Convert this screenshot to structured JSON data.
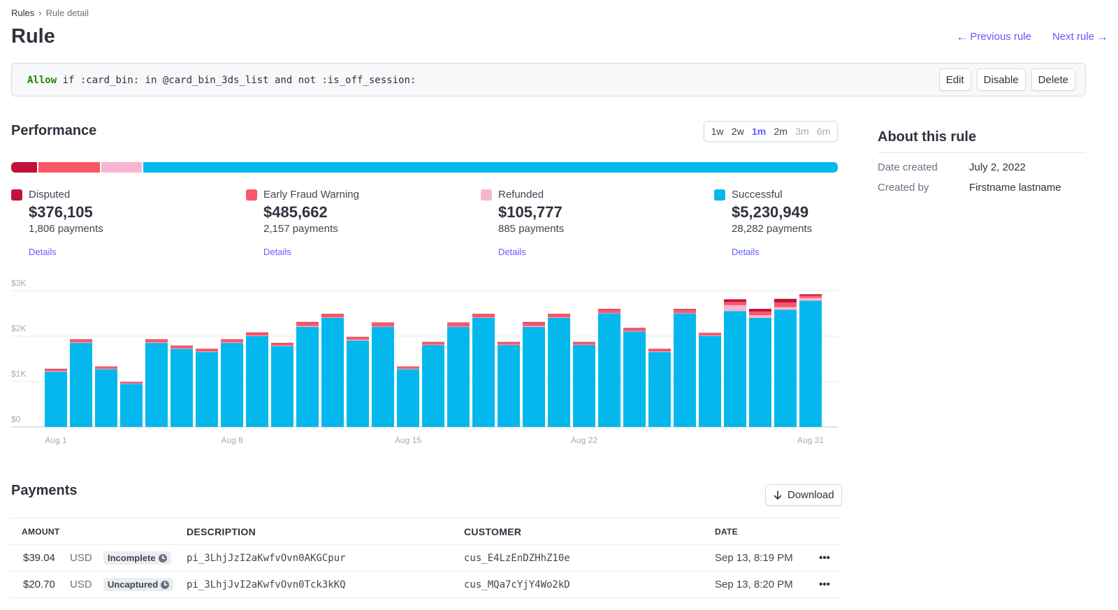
{
  "breadcrumb": {
    "root": "Rules",
    "separator": "›",
    "current": "Rule detail"
  },
  "page": {
    "title": "Rule"
  },
  "pager": {
    "previous": "Previous rule",
    "next": "Next rule",
    "previous_icon": "arrow-left-icon",
    "next_icon": "arrow-right-icon"
  },
  "rule": {
    "keyword": "Allow",
    "condition": " if :card_bin: in @card_bin_3ds_list and not :is_off_session:",
    "actions": {
      "edit": "Edit",
      "disable": "Disable",
      "delete": "Delete"
    }
  },
  "performance": {
    "title": "Performance",
    "ranges": [
      {
        "label": "1w",
        "state": "normal"
      },
      {
        "label": "2w",
        "state": "normal"
      },
      {
        "label": "1m",
        "state": "active"
      },
      {
        "label": "2m",
        "state": "normal"
      },
      {
        "label": "3m",
        "state": "disabled"
      },
      {
        "label": "6m",
        "state": "disabled"
      }
    ],
    "stats": [
      {
        "label": "Disputed",
        "value": "$376,105",
        "count": "1,806 payments",
        "details": "Details",
        "color": "#c0123c"
      },
      {
        "label": "Early Fraud Warning",
        "value": "$485,662",
        "count": "2,157 payments",
        "details": "Details",
        "color": "#fa5768"
      },
      {
        "label": "Refunded",
        "value": "$105,777",
        "count": "885 payments",
        "details": "Details",
        "color": "#f9b4d2"
      },
      {
        "label": "Successful",
        "value": "$5,230,949",
        "count": "28,282 payments",
        "details": "Details",
        "color": "#04b8ed"
      }
    ]
  },
  "chart_data": {
    "type": "bar",
    "stacked": true,
    "ylim": [
      0,
      3000
    ],
    "ytick_labels": [
      "$3K",
      "$2K",
      "$1K",
      "$0"
    ],
    "yticks": [
      3000,
      2000,
      1000,
      0
    ],
    "xtick_labels": [
      "Aug 1",
      "Aug 8",
      "Aug 15",
      "Aug 22",
      "Aug 31"
    ],
    "xtick_days": [
      1,
      8,
      15,
      22,
      31
    ],
    "categories": [
      "Aug 1",
      "Aug 2",
      "Aug 3",
      "Aug 4",
      "Aug 5",
      "Aug 6",
      "Aug 7",
      "Aug 8",
      "Aug 9",
      "Aug 10",
      "Aug 11",
      "Aug 12",
      "Aug 13",
      "Aug 14",
      "Aug 15",
      "Aug 16",
      "Aug 17",
      "Aug 18",
      "Aug 19",
      "Aug 20",
      "Aug 21",
      "Aug 22",
      "Aug 23",
      "Aug 24",
      "Aug 25",
      "Aug 26",
      "Aug 27",
      "Aug 28",
      "Aug 29",
      "Aug 30",
      "Aug 31"
    ],
    "series": [
      {
        "name": "Successful",
        "color": "#04b8ed",
        "values": [
          1220,
          1850,
          1270,
          950,
          1850,
          1720,
          1650,
          1850,
          2000,
          1780,
          2200,
          2400,
          1900,
          2200,
          1270,
          1800,
          2200,
          2400,
          1800,
          2200,
          2400,
          1800,
          2500,
          2100,
          1650,
          2500,
          2000,
          2550,
          2400,
          2580,
          2780
        ]
      },
      {
        "name": "Refunded",
        "color": "#f9b4d2",
        "values": [
          10,
          10,
          10,
          5,
          10,
          10,
          10,
          10,
          10,
          10,
          20,
          10,
          20,
          10,
          10,
          10,
          10,
          10,
          10,
          20,
          10,
          10,
          10,
          10,
          10,
          10,
          10,
          130,
          60,
          60,
          60
        ]
      },
      {
        "name": "Early Fraud Warning",
        "color": "#fa5768",
        "values": [
          40,
          60,
          40,
          30,
          60,
          50,
          50,
          60,
          60,
          50,
          80,
          70,
          50,
          80,
          40,
          50,
          80,
          70,
          50,
          80,
          70,
          50,
          80,
          60,
          50,
          80,
          50,
          70,
          80,
          100,
          50
        ]
      },
      {
        "name": "Disputed",
        "color": "#c0123c",
        "values": [
          10,
          10,
          10,
          5,
          10,
          10,
          10,
          10,
          10,
          10,
          10,
          10,
          10,
          10,
          10,
          10,
          10,
          10,
          10,
          10,
          10,
          10,
          10,
          10,
          10,
          10,
          10,
          60,
          60,
          80,
          30
        ]
      }
    ]
  },
  "about": {
    "title": "About this rule",
    "rows": [
      {
        "key": "Date created",
        "value": "July 2, 2022"
      },
      {
        "key": "Created by",
        "value": "Firstname lastname"
      }
    ]
  },
  "payments": {
    "title": "Payments",
    "download": "Download",
    "download_icon": "arrow-down-icon",
    "columns": {
      "amount": "AMOUNT",
      "description": "DESCRIPTION",
      "customer": "CUSTOMER",
      "date": "DATE"
    },
    "rows": [
      {
        "amount": "$39.04",
        "currency": "USD",
        "status": "Incomplete",
        "description": "pi_3LhjJzI2aKwfvOvn0AKGCpur",
        "customer": "cus_E4LzEnDZHhZ10e",
        "date": "Sep 13, 8:19 PM",
        "more": "•••"
      },
      {
        "amount": "$20.70",
        "currency": "USD",
        "status": "Uncaptured",
        "description": "pi_3LhjJvI2aKwfvOvn0Tck3kKQ",
        "customer": "cus_MQa7cYjY4Wo2kD",
        "date": "Sep 13, 8:20 PM",
        "more": "•••"
      }
    ]
  },
  "colors": {
    "accent": "#635bff",
    "keyword": "#228403"
  }
}
